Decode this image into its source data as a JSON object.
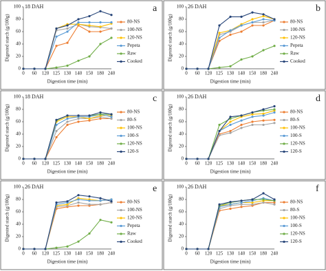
{
  "chart_data": [
    {
      "type": "line",
      "title": "18 DAH",
      "label": "a",
      "x_label": "Digestion time (min)",
      "y_label": "Digested starch (g/100g)",
      "categories": [
        "0",
        "60",
        "120",
        "125",
        "130",
        "140",
        "150",
        "180",
        "240"
      ],
      "ylim": [
        0,
        100
      ],
      "yticks": [
        0,
        20,
        40,
        60,
        80,
        100
      ],
      "series": [
        {
          "name": "80-NS",
          "color": "#ed7d31",
          "values": [
            0,
            0,
            0,
            37,
            42,
            70,
            60,
            60,
            65
          ]
        },
        {
          "name": "100-NS",
          "color": "#a5a5a5",
          "values": [
            0,
            0,
            0,
            62,
            65,
            72,
            68,
            67,
            65
          ]
        },
        {
          "name": "120-NS",
          "color": "#ffc000",
          "values": [
            0,
            0,
            0,
            65,
            72,
            72,
            70,
            68,
            73
          ]
        },
        {
          "name": "Pepeta",
          "color": "#5b9bd5",
          "values": [
            0,
            0,
            0,
            52,
            60,
            75,
            75,
            75,
            75
          ]
        },
        {
          "name": "Raw",
          "color": "#70ad47",
          "values": [
            0,
            0,
            0,
            2,
            5,
            13,
            20,
            40,
            50
          ]
        },
        {
          "name": "Cooked",
          "color": "#264478",
          "values": [
            0,
            0,
            0,
            65,
            70,
            80,
            85,
            93,
            87
          ]
        }
      ]
    },
    {
      "type": "line",
      "title": "26 DAH",
      "label": "b",
      "x_label": "Digestion time (min)",
      "y_label": "Digested starch (g/100g)",
      "categories": [
        "0",
        "60",
        "120",
        "125",
        "130",
        "140",
        "150",
        "180",
        "240"
      ],
      "ylim": [
        0,
        100
      ],
      "yticks": [
        0,
        20,
        40,
        60,
        80,
        100
      ],
      "series": [
        {
          "name": "80-NS",
          "color": "#ed7d31",
          "values": [
            0,
            0,
            0,
            45,
            55,
            60,
            70,
            70,
            78
          ]
        },
        {
          "name": "100-NS",
          "color": "#a5a5a5",
          "values": [
            0,
            0,
            0,
            55,
            60,
            70,
            75,
            75,
            78
          ]
        },
        {
          "name": "120-NS",
          "color": "#ffc000",
          "values": [
            0,
            0,
            0,
            58,
            62,
            72,
            80,
            85,
            80
          ]
        },
        {
          "name": "Pepeta",
          "color": "#5b9bd5",
          "values": [
            0,
            0,
            0,
            50,
            62,
            70,
            75,
            80,
            78
          ]
        },
        {
          "name": "Raw",
          "color": "#70ad47",
          "values": [
            0,
            0,
            0,
            2,
            4,
            15,
            20,
            30,
            37
          ]
        },
        {
          "name": "Cooked",
          "color": "#264478",
          "values": [
            0,
            0,
            0,
            70,
            84,
            84,
            91,
            88,
            80
          ]
        }
      ]
    },
    {
      "type": "line",
      "title": "18 DAH",
      "label": "c",
      "x_label": "Digestion time (min)",
      "y_label": "Digested starch (g/100g)",
      "categories": [
        "0",
        "60",
        "120",
        "125",
        "130",
        "140",
        "150",
        "180",
        "240"
      ],
      "ylim": [
        0,
        100
      ],
      "yticks": [
        0,
        20,
        40,
        60,
        80,
        100
      ],
      "series": [
        {
          "name": "80-NS",
          "color": "#ed7d31",
          "values": [
            0,
            0,
            0,
            35,
            55,
            60,
            62,
            65,
            65
          ]
        },
        {
          "name": "80-S",
          "color": "#a5a5a5",
          "values": [
            0,
            0,
            0,
            45,
            60,
            65,
            65,
            68,
            65
          ]
        },
        {
          "name": "100-NS",
          "color": "#ffc000",
          "values": [
            0,
            0,
            0,
            60,
            68,
            68,
            65,
            70,
            70
          ]
        },
        {
          "name": "100-S",
          "color": "#5b9bd5",
          "values": [
            0,
            0,
            0,
            55,
            65,
            68,
            68,
            72,
            68
          ]
        },
        {
          "name": "120-NS",
          "color": "#70ad47",
          "values": [
            0,
            0,
            0,
            62,
            70,
            70,
            70,
            72,
            72
          ]
        },
        {
          "name": "120-S",
          "color": "#264478",
          "values": [
            0,
            0,
            0,
            63,
            70,
            70,
            70,
            75,
            72
          ]
        }
      ]
    },
    {
      "type": "line",
      "title": "26 DAH",
      "label": "d",
      "x_label": "Digestion time (min)",
      "y_label": "Digested starch (g/100g)",
      "categories": [
        "0",
        "60",
        "120",
        "125",
        "130",
        "140",
        "150",
        "180",
        "240"
      ],
      "ylim": [
        0,
        100
      ],
      "yticks": [
        0,
        20,
        40,
        60,
        80,
        100
      ],
      "series": [
        {
          "name": "80-NS",
          "color": "#ed7d31",
          "values": [
            0,
            0,
            0,
            40,
            45,
            55,
            60,
            62,
            63
          ]
        },
        {
          "name": "80-S",
          "color": "#a5a5a5",
          "values": [
            0,
            0,
            0,
            38,
            42,
            50,
            55,
            55,
            58
          ]
        },
        {
          "name": "100-NS",
          "color": "#ffc000",
          "values": [
            0,
            0,
            0,
            45,
            60,
            68,
            72,
            73,
            78
          ]
        },
        {
          "name": "100-S",
          "color": "#5b9bd5",
          "values": [
            0,
            0,
            0,
            45,
            55,
            62,
            68,
            70,
            75
          ]
        },
        {
          "name": "120-NS",
          "color": "#70ad47",
          "values": [
            0,
            0,
            0,
            55,
            65,
            70,
            75,
            78,
            80
          ]
        },
        {
          "name": "120-S",
          "color": "#264478",
          "values": [
            0,
            0,
            0,
            45,
            68,
            70,
            75,
            80,
            85
          ]
        }
      ]
    },
    {
      "type": "line",
      "title": "26 DAH",
      "label": "e",
      "x_label": "Digestion time (min)",
      "y_label": "Digested starch (g/100g)",
      "categories": [
        "0",
        "60",
        "120",
        "125",
        "130",
        "140",
        "150",
        "180",
        "240"
      ],
      "ylim": [
        0,
        100
      ],
      "yticks": [
        0,
        20,
        40,
        60,
        80,
        100
      ],
      "series": [
        {
          "name": "80-NS",
          "color": "#ed7d31",
          "values": [
            0,
            0,
            0,
            65,
            68,
            70,
            70,
            72,
            75
          ]
        },
        {
          "name": "100-NS",
          "color": "#a5a5a5",
          "values": [
            0,
            0,
            0,
            68,
            70,
            75,
            72,
            72,
            75
          ]
        },
        {
          "name": "120-NS",
          "color": "#ffc000",
          "values": [
            0,
            0,
            0,
            70,
            72,
            82,
            80,
            78,
            80
          ]
        },
        {
          "name": "Pepeta",
          "color": "#5b9bd5",
          "values": [
            0,
            0,
            0,
            72,
            75,
            80,
            78,
            78,
            80
          ]
        },
        {
          "name": "Raw",
          "color": "#70ad47",
          "values": [
            0,
            0,
            0,
            2,
            4,
            12,
            25,
            47,
            43
          ]
        },
        {
          "name": "Cooked",
          "color": "#264478",
          "values": [
            0,
            0,
            0,
            75,
            77,
            87,
            85,
            82,
            77
          ]
        }
      ]
    },
    {
      "type": "line",
      "title": "26 DAH",
      "label": "f",
      "x_label": "Digestion time (min)",
      "y_label": "Digested starch (g/100g)",
      "categories": [
        "0",
        "60",
        "120",
        "125",
        "130",
        "140",
        "150",
        "180",
        "240"
      ],
      "ylim": [
        0,
        100
      ],
      "yticks": [
        0,
        20,
        40,
        60,
        80,
        100
      ],
      "series": [
        {
          "name": "80-NS",
          "color": "#ed7d31",
          "values": [
            0,
            0,
            0,
            62,
            65,
            68,
            70,
            75,
            75
          ]
        },
        {
          "name": "80-S",
          "color": "#a5a5a5",
          "values": [
            0,
            0,
            0,
            65,
            70,
            72,
            72,
            75,
            72
          ]
        },
        {
          "name": "100-NS",
          "color": "#ffc000",
          "values": [
            0,
            0,
            0,
            70,
            72,
            75,
            75,
            78,
            78
          ]
        },
        {
          "name": "100-S",
          "color": "#5b9bd5",
          "values": [
            0,
            0,
            0,
            68,
            72,
            75,
            78,
            82,
            78
          ]
        },
        {
          "name": "120-NS",
          "color": "#70ad47",
          "values": [
            0,
            0,
            0,
            70,
            75,
            78,
            80,
            80,
            78
          ]
        },
        {
          "name": "120-S",
          "color": "#264478",
          "values": [
            0,
            0,
            0,
            72,
            76,
            78,
            80,
            90,
            80
          ]
        }
      ]
    }
  ]
}
